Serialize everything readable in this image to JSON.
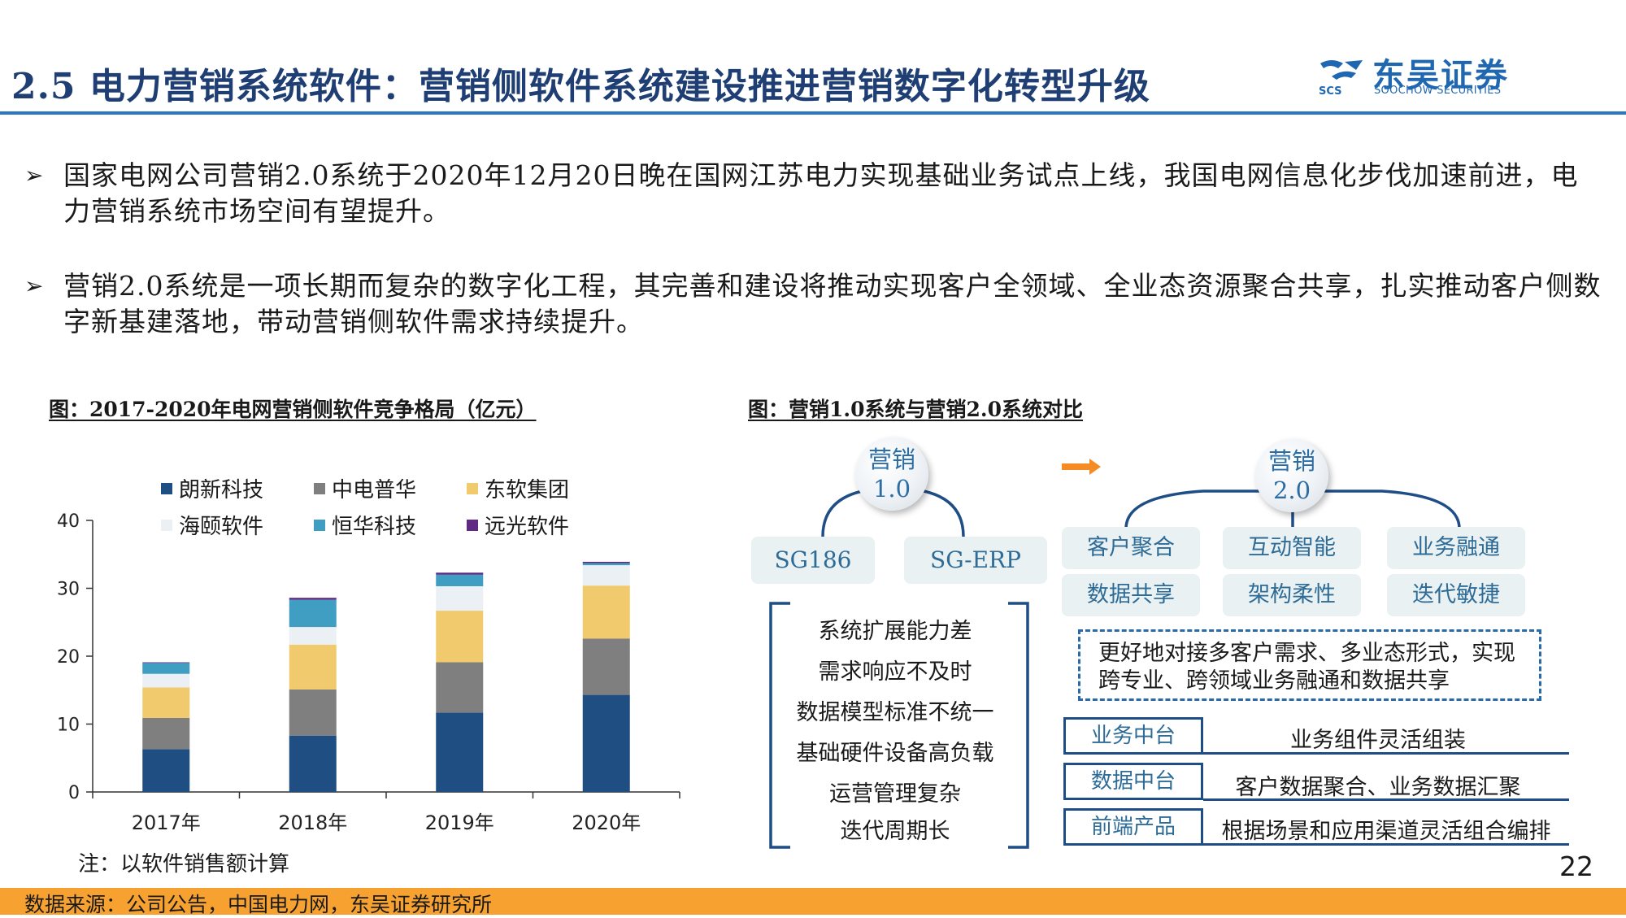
{
  "header": {
    "title": "2.5 电力营销系统软件：营销侧软件系统建设推进营销数字化转型升级",
    "logo_cn": "东吴证券",
    "logo_en": "SOOCHOW SECURITIES",
    "logo_mark": "SCS",
    "brand_color": "#1f67b1"
  },
  "bullets": [
    {
      "mark": "➢",
      "text": "国家电网公司营销2.0系统于2020年12月20日晚在国网江苏电力实现基础业务试点上线，我国电网信息化步伐加速前进，电力营销系统市场空间有望提升。"
    },
    {
      "mark": "➢",
      "text": "营销2.0系统是一项长期而复杂的数字化工程，其完善和建设将推动实现客户全领域、全业态资源聚合共享，扎实推动客户侧数字新基建落地，带动营销侧软件需求持续提升。"
    }
  ],
  "chart_caption": "图：2017-2020年电网营销侧软件竞争格局（亿元）",
  "chart_note": "注：以软件销售额计算",
  "chart_data": {
    "type": "bar",
    "stacked": true,
    "categories": [
      "2017年",
      "2018年",
      "2019年",
      "2020年"
    ],
    "series": [
      {
        "name": "朗新科技",
        "color": "#1f4e83",
        "values": [
          6.3,
          8.3,
          11.7,
          14.3
        ]
      },
      {
        "name": "中电普华",
        "color": "#7f7f7f",
        "values": [
          4.6,
          6.8,
          7.4,
          8.3
        ]
      },
      {
        "name": "东软集团",
        "color": "#f0ca6c",
        "values": [
          4.5,
          6.6,
          7.6,
          7.8
        ]
      },
      {
        "name": "海颐软件",
        "color": "#eaf0f3",
        "values": [
          2.0,
          2.6,
          3.6,
          3.0
        ]
      },
      {
        "name": "恒华科技",
        "color": "#3f9ec1",
        "values": [
          1.6,
          4.0,
          1.7,
          0.3
        ]
      },
      {
        "name": "远光软件",
        "color": "#5e2a84",
        "values": [
          0.1,
          0.3,
          0.3,
          0.2
        ]
      }
    ],
    "y_ticks": [
      "0",
      "10",
      "20",
      "30",
      "40"
    ],
    "ylim": [
      0,
      40
    ],
    "legend_position": "top",
    "grid": false
  },
  "diagram": {
    "caption": "图：营销1.0系统与营销2.0系统对比",
    "v1": {
      "circle": [
        "营销",
        "1.0"
      ],
      "systems": [
        "SG186",
        "SG-ERP"
      ],
      "problems": [
        "系统扩展能力差",
        "需求响应不及时",
        "数据模型标准不统一",
        "基础硬件设备高负载",
        "运营管理复杂",
        "迭代周期长"
      ]
    },
    "arrow_icon": "right-arrow-icon",
    "arrow_color": "#f58c23",
    "v2": {
      "circle": [
        "营销",
        "2.0"
      ],
      "features": [
        "客户聚合",
        "互动智能",
        "业务融通",
        "数据共享",
        "架构柔性",
        "迭代敏捷"
      ],
      "summary": "更好地对接多客户需求、多业态形式，实现跨专业、跨领域业务融通和数据共享",
      "tiers": [
        {
          "label": "业务中台",
          "desc": "业务组件灵活组装"
        },
        {
          "label": "数据中台",
          "desc": "客户数据聚合、业务数据汇聚"
        },
        {
          "label": "前端产品",
          "desc": "根据场景和应用渠道灵活组合编排"
        }
      ]
    }
  },
  "footer": {
    "source": "数据来源：公司公告，中国电力网，东吴证券研究所",
    "page_number": "22",
    "accent": "#f7a131"
  }
}
